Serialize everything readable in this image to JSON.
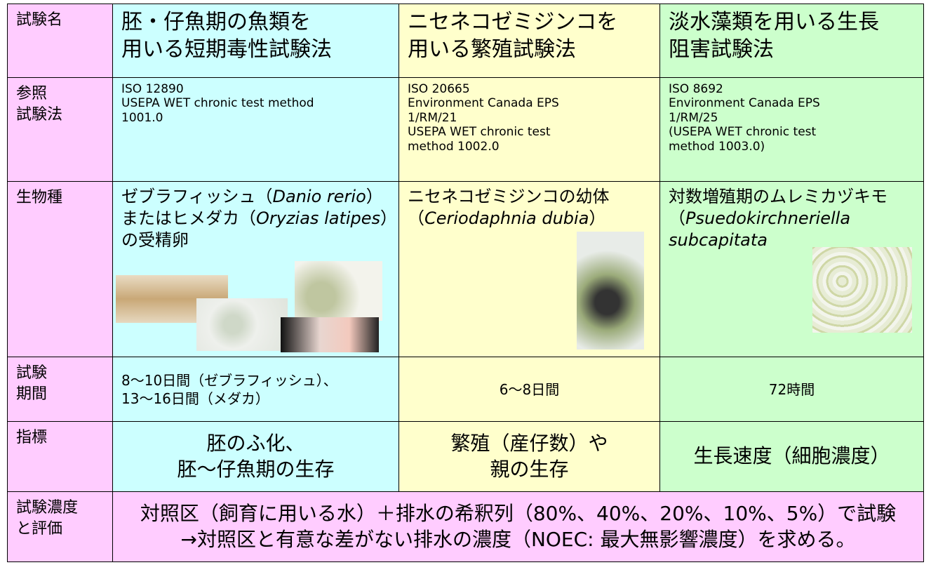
{
  "table": {
    "rows": [
      {
        "label": [
          "試験名"
        ],
        "cells": [
          {
            "lines": [
              "胚・仔魚期の魚類を",
              "用いる短期毒性試験法"
            ]
          },
          {
            "lines": [
              "ニセネコゼミジンコを",
              "用いる繁殖試験法"
            ]
          },
          {
            "lines": [
              "淡水藻類を用いる生長",
              "阻害試験法"
            ]
          }
        ]
      },
      {
        "label": [
          "参照",
          "試験法"
        ],
        "cells": [
          {
            "lines": [
              "ISO 12890",
              "USEPA WET chronic test method",
              "1001.0"
            ]
          },
          {
            "lines": [
              "ISO 20665",
              "Environment Canada EPS",
              "1/RM/21",
              "USEPA WET chronic test",
              "method 1002.0"
            ]
          },
          {
            "lines": [
              "ISO 8692",
              "Environment Canada  EPS",
              "1/RM/25",
              "(USEPA WET chronic test",
              "method 1003.0)"
            ]
          }
        ]
      },
      {
        "label": [
          "生物種"
        ],
        "cells": [
          {
            "lines": [
              [
                {
                  "text": "ゼブラフィッシュ（",
                  "italic": false
                },
                {
                  "text": "Danio rerio",
                  "italic": true
                },
                {
                  "text": "）またはヒメダカ（",
                  "italic": false
                },
                {
                  "text": "Oryzias latipes",
                  "italic": true
                },
                {
                  "text": "）の受精卵",
                  "italic": false
                }
              ]
            ]
          },
          {
            "lines": [
              [
                {
                  "text": "ニセネコゼミジンコの幼体",
                  "italic": false
                }
              ],
              [
                {
                  "text": "（",
                  "italic": false
                },
                {
                  "text": "Ceriodaphnia dubia",
                  "italic": true
                },
                {
                  "text": "）",
                  "italic": false
                }
              ]
            ]
          },
          {
            "lines": [
              [
                {
                  "text": "対数増殖期のムレミカヅキモ（",
                  "italic": false
                },
                {
                  "text": "Psuedokirchneriella subcapitata",
                  "italic": true
                }
              ]
            ]
          }
        ]
      },
      {
        "label": [
          "試験",
          "期間"
        ],
        "cells": [
          {
            "lines": [
              "8～10日間（ゼブラフィッシュ）、",
              "13～16日間（メダカ）"
            ]
          },
          {
            "lines": [
              "6～8日間"
            ]
          },
          {
            "lines": [
              "72時間"
            ]
          }
        ]
      },
      {
        "label": [
          "指標"
        ],
        "cells": [
          {
            "lines": [
              "胚のふ化、",
              "胚～仔魚期の生存"
            ]
          },
          {
            "lines": [
              "繁殖（産仔数）や",
              "親の生存"
            ]
          },
          {
            "lines": [
              "生長速度（細胞濃度）"
            ]
          }
        ]
      },
      {
        "label": [
          "試験濃度",
          "と評価"
        ],
        "cells": [
          {
            "lines": [
              "対照区（飼育に用いる水）＋排水の希釈列（80%、40%、20%、10%、5%）で試験",
              "→対照区と有意な差がない排水の濃度（NOEC: 最大無影響濃度）を求める。"
            ]
          }
        ]
      }
    ]
  }
}
